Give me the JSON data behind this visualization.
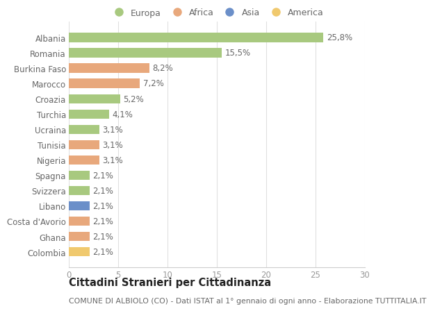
{
  "title": "Cittadini Stranieri per Cittadinanza",
  "subtitle": "COMUNE DI ALBIOLO (CO) - Dati ISTAT al 1° gennaio di ogni anno - Elaborazione TUTTITALIA.IT",
  "categories": [
    "Albania",
    "Romania",
    "Burkina Faso",
    "Marocco",
    "Croazia",
    "Turchia",
    "Ucraina",
    "Tunisia",
    "Nigeria",
    "Spagna",
    "Svizzera",
    "Libano",
    "Costa d'Avorio",
    "Ghana",
    "Colombia"
  ],
  "values": [
    25.8,
    15.5,
    8.2,
    7.2,
    5.2,
    4.1,
    3.1,
    3.1,
    3.1,
    2.1,
    2.1,
    2.1,
    2.1,
    2.1,
    2.1
  ],
  "labels": [
    "25,8%",
    "15,5%",
    "8,2%",
    "7,2%",
    "5,2%",
    "4,1%",
    "3,1%",
    "3,1%",
    "3,1%",
    "2,1%",
    "2,1%",
    "2,1%",
    "2,1%",
    "2,1%",
    "2,1%"
  ],
  "colors": [
    "#a8c97f",
    "#a8c97f",
    "#e8a87c",
    "#e8a87c",
    "#a8c97f",
    "#a8c97f",
    "#a8c97f",
    "#e8a87c",
    "#e8a87c",
    "#a8c97f",
    "#a8c97f",
    "#6b8fc9",
    "#e8a87c",
    "#e8a87c",
    "#f0c96e"
  ],
  "legend_labels": [
    "Europa",
    "Africa",
    "Asia",
    "America"
  ],
  "legend_colors": [
    "#a8c97f",
    "#e8a87c",
    "#6b8fc9",
    "#f0c96e"
  ],
  "xlim": [
    0,
    30
  ],
  "xticks": [
    0,
    5,
    10,
    15,
    20,
    25,
    30
  ],
  "background_color": "#ffffff",
  "grid_color": "#e0e0e0",
  "label_fontsize": 8.5,
  "ytick_fontsize": 8.5,
  "xtick_fontsize": 8.5,
  "title_fontsize": 10.5,
  "subtitle_fontsize": 7.8,
  "bar_height": 0.6
}
